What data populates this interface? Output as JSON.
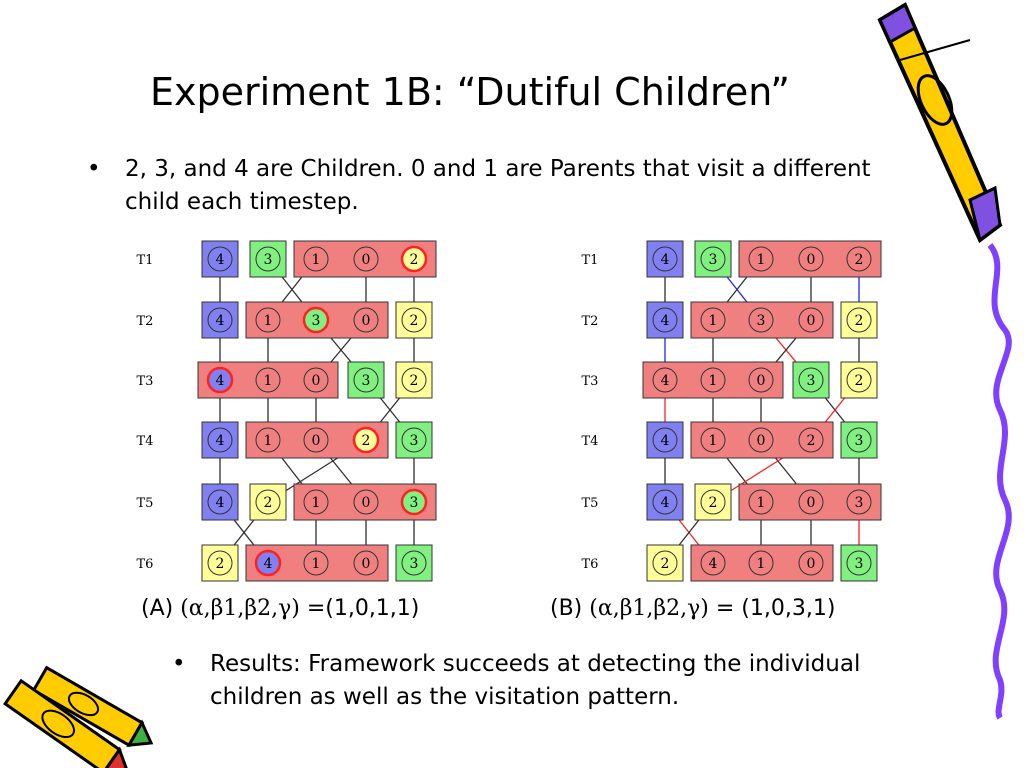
{
  "slide": {
    "title": "Experiment 1B: “Dutiful Children”",
    "bullet1": "2, 3, and 4 are Children.  0 and 1 are Parents that visit a different child each timestep.",
    "bullet2": "Results: Framework succeeds at detecting the individual children as well as the visitation pattern.",
    "bullet_marker": "•"
  },
  "captions": {
    "A": {
      "label": "(A)",
      "params": "(α,β1,β2,γ)",
      "values": "=(1,0,1,1)"
    },
    "B": {
      "label": "(B)",
      "params": "(α,β1,β2,γ)",
      "values": "= (1,0,3,1)"
    }
  },
  "timesteps": [
    "T1",
    "T2",
    "T3",
    "T4",
    "T5",
    "T6"
  ],
  "colors": {
    "parent_box": "#f08080",
    "child2_box": "#ffff99",
    "child3_box": "#80f080",
    "child4_box": "#8080f0",
    "highlight_ring": "#ff2020",
    "red_link": "#ff2020",
    "blue_link": "#2020ff",
    "plain_link": "#303030"
  },
  "diagrams": {
    "A": {
      "slots": [
        [
          "4",
          "3",
          "1",
          "0",
          "2"
        ],
        [
          "4",
          "1",
          "3",
          "0",
          "2"
        ],
        [
          "4",
          "1",
          "0",
          "3",
          "2"
        ],
        [
          "4",
          "1",
          "0",
          "2",
          "3"
        ],
        [
          "4",
          "2",
          "1",
          "0",
          "3"
        ],
        [
          "2",
          "4",
          "1",
          "0",
          "3"
        ]
      ],
      "highlighted_nodes": [
        [
          0,
          4
        ],
        [
          1,
          2
        ],
        [
          2,
          0
        ],
        [
          3,
          3
        ],
        [
          4,
          4
        ],
        [
          5,
          1
        ]
      ]
    },
    "B": {
      "slots": [
        [
          "4",
          "3",
          "1",
          "0",
          "2"
        ],
        [
          "4",
          "1",
          "3",
          "0",
          "2"
        ],
        [
          "4",
          "1",
          "0",
          "3",
          "2"
        ],
        [
          "4",
          "1",
          "0",
          "2",
          "3"
        ],
        [
          "4",
          "2",
          "1",
          "0",
          "3"
        ],
        [
          "2",
          "4",
          "1",
          "0",
          "3"
        ]
      ],
      "red_links": [
        [
          1,
          2,
          2,
          3
        ],
        [
          2,
          0,
          3,
          0
        ],
        [
          2,
          4,
          3,
          3
        ],
        [
          3,
          3,
          4,
          1
        ],
        [
          4,
          0,
          5,
          1
        ],
        [
          4,
          4,
          5,
          4
        ]
      ],
      "blue_links": [
        [
          0,
          1,
          1,
          2
        ],
        [
          0,
          4,
          1,
          4
        ],
        [
          1,
          0,
          2,
          0
        ]
      ]
    }
  }
}
